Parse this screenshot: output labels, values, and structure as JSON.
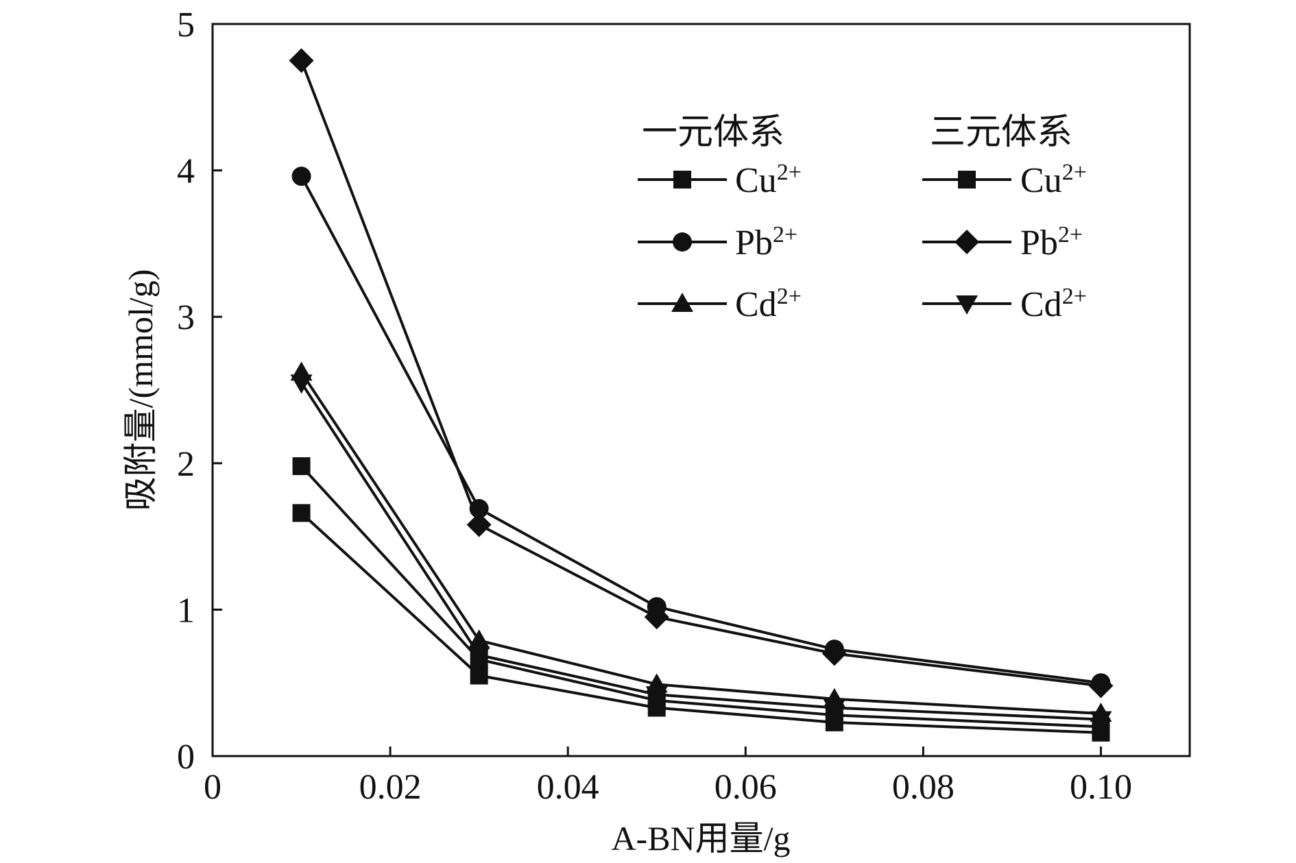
{
  "chart_data": {
    "type": "line",
    "title": "",
    "xlabel": "A-BN用量/g",
    "ylabel": "吸附量/(mmol/g)",
    "xlim": [
      0,
      0.11
    ],
    "ylim": [
      0,
      5
    ],
    "xticks": [
      0,
      0.02,
      0.04,
      0.06,
      0.08,
      0.1
    ],
    "xtick_labels": [
      "0",
      "0.02",
      "0.04",
      "0.06",
      "0.08",
      "0.10"
    ],
    "yticks": [
      0,
      1,
      2,
      3,
      4,
      5
    ],
    "ytick_labels": [
      "0",
      "1",
      "2",
      "3",
      "4",
      "5"
    ],
    "grid": false,
    "legend_placement": "top-right",
    "legend_groups": [
      "一元体系",
      "三元体系"
    ],
    "x": [
      0.01,
      0.03,
      0.05,
      0.07,
      0.1
    ],
    "series": [
      {
        "name": "Cu2+",
        "group": "一元体系",
        "marker": "square",
        "values": [
          1.98,
          0.66,
          0.38,
          0.28,
          0.2
        ]
      },
      {
        "name": "Pb2+",
        "group": "一元体系",
        "marker": "circle",
        "values": [
          3.96,
          1.69,
          1.02,
          0.73,
          0.5
        ]
      },
      {
        "name": "Cd2+",
        "group": "一元体系",
        "marker": "triangle-up",
        "values": [
          2.62,
          0.79,
          0.49,
          0.39,
          0.29
        ]
      },
      {
        "name": "Cu2+",
        "group": "三元体系",
        "marker": "square",
        "values": [
          1.66,
          0.55,
          0.33,
          0.23,
          0.16
        ]
      },
      {
        "name": "Pb2+",
        "group": "三元体系",
        "marker": "diamond",
        "values": [
          4.75,
          1.58,
          0.95,
          0.7,
          0.48
        ]
      },
      {
        "name": "Cd2+",
        "group": "三元体系",
        "marker": "triangle-down",
        "values": [
          2.55,
          0.69,
          0.42,
          0.33,
          0.25
        ]
      }
    ],
    "legend": {
      "titles": [
        "一元体系",
        "三元体系"
      ],
      "ion_base": [
        "Cu",
        "Pb",
        "Cd"
      ],
      "ion_charge": "2+"
    },
    "colors": {
      "line": "#111111",
      "background": "#ffffff"
    }
  }
}
